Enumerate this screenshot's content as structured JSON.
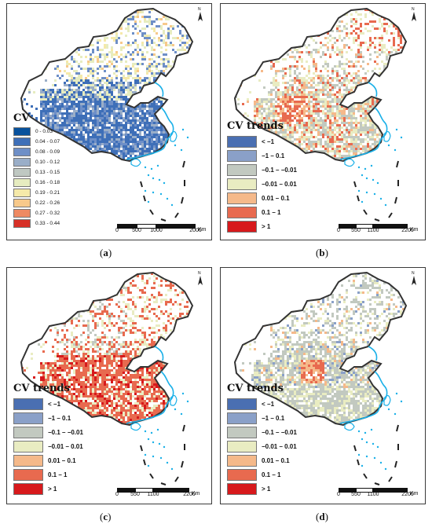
{
  "panels": [
    {
      "id": "a",
      "caption_prefix": "(",
      "caption_letter": "a",
      "caption_suffix": ")",
      "legend_title": "CV",
      "legend": [
        {
          "label": "0 - 0.03",
          "color": "#08519c"
        },
        {
          "label": "0.04 - 0.07",
          "color": "#3e6fb8"
        },
        {
          "label": "0.08 - 0.09",
          "color": "#6e8fc7"
        },
        {
          "label": "0.10 - 0.12",
          "color": "#9aaec8"
        },
        {
          "label": "0.13 - 0.15",
          "color": "#bfc8c2"
        },
        {
          "label": "0.16 - 0.18",
          "color": "#e6ecc0"
        },
        {
          "label": "0.19 - 0.21",
          "color": "#f5e9a9"
        },
        {
          "label": "0.22 - 0.26",
          "color": "#f7c98b"
        },
        {
          "label": "0.27 - 0.32",
          "color": "#ee8a63"
        },
        {
          "label": "0.33 - 0.44",
          "color": "#d73027"
        }
      ],
      "scale_ticks": [
        "0",
        "500",
        "1000",
        "2000"
      ],
      "scale_unit": "Km",
      "north_label": "N"
    },
    {
      "id": "b",
      "caption_prefix": "(",
      "caption_letter": "b",
      "caption_suffix": ")",
      "legend_title": "CV trends",
      "legend": [
        {
          "label": "< −1",
          "color": "#4a6fb2"
        },
        {
          "label": "−1 – 0.1",
          "color": "#8aa0c8"
        },
        {
          "label": "−0.1 – −0.01",
          "color": "#c2c9c0"
        },
        {
          "label": "−0.01 – 0.01",
          "color": "#e9ecc2"
        },
        {
          "label": "0.01 – 0.1",
          "color": "#f5b98a"
        },
        {
          "label": "0.1 – 1",
          "color": "#e86a4f"
        },
        {
          "label": "> 1",
          "color": "#d7191c"
        }
      ],
      "scale_ticks": [
        "0",
        "550",
        "1100",
        "2200"
      ],
      "scale_unit": "Km",
      "north_label": "N"
    },
    {
      "id": "c",
      "caption_prefix": "(",
      "caption_letter": "c",
      "caption_suffix": ")",
      "legend_title": "CV trends",
      "legend": [
        {
          "label": "< −1",
          "color": "#4a6fb2"
        },
        {
          "label": "−1 – 0.1",
          "color": "#8aa0c8"
        },
        {
          "label": "−0.1 – −0.01",
          "color": "#c2c9c0"
        },
        {
          "label": "−0.01 – 0.01",
          "color": "#e9ecc2"
        },
        {
          "label": "0.01 – 0.1",
          "color": "#f5b98a"
        },
        {
          "label": "0.1 – 1",
          "color": "#e86a4f"
        },
        {
          "label": "> 1",
          "color": "#d7191c"
        }
      ],
      "scale_ticks": [
        "0",
        "550",
        "1100",
        "2200"
      ],
      "scale_unit": "Km",
      "north_label": "N"
    },
    {
      "id": "d",
      "caption_prefix": "(",
      "caption_letter": "d",
      "caption_suffix": ")",
      "legend_title": "CV trends",
      "legend": [
        {
          "label": "< −1",
          "color": "#4a6fb2"
        },
        {
          "label": "−1 – 0.1",
          "color": "#8aa0c8"
        },
        {
          "label": "−0.1 – −0.01",
          "color": "#c2c9c0"
        },
        {
          "label": "−0.01 – 0.01",
          "color": "#e9ecc2"
        },
        {
          "label": "0.01 – 0.1",
          "color": "#f5b98a"
        },
        {
          "label": "0.1 – 1",
          "color": "#e86a4f"
        },
        {
          "label": "> 1",
          "color": "#d7191c"
        }
      ],
      "scale_ticks": [
        "0",
        "550",
        "1100",
        "2200"
      ],
      "scale_unit": "Km",
      "north_label": "N"
    }
  ],
  "colors": {
    "boundary": "#333333",
    "coastline": "#1ab0e8",
    "island_dots": "#1ab0e8",
    "nine_dash": "#222222"
  }
}
